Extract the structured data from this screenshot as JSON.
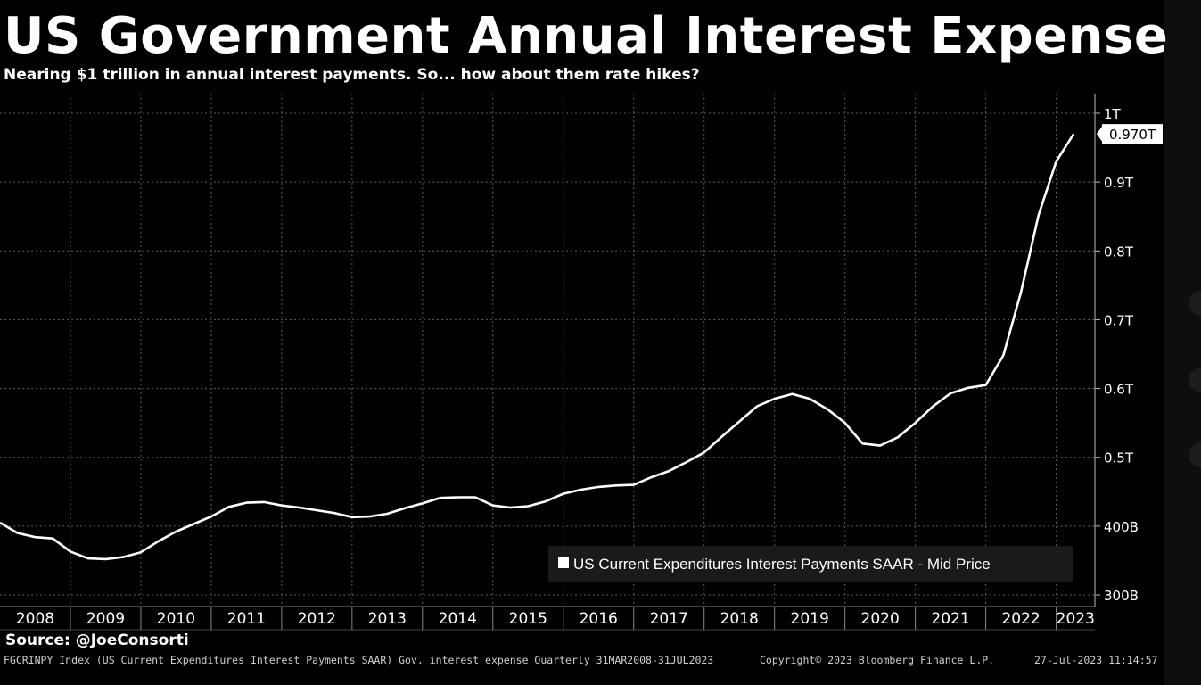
{
  "header": {
    "title": "US Government Annual Interest Expense",
    "subtitle": "Nearing $1 trillion in annual interest payments. So... how about them rate hikes?"
  },
  "footer": {
    "source": "Source: @JoeConsorti",
    "index_line": "FGCRINPY Index (US Current Expenditures Interest Payments SAAR) Gov. interest expense  Quarterly 31MAR2008-31JUL2023",
    "copyright": "Copyright© 2023 Bloomberg Finance L.P.",
    "timestamp": "27-Jul-2023 11:14:57"
  },
  "colors": {
    "background": "#000000",
    "line": "#ffffff",
    "grid": "#5a5a5a",
    "legend_bg": "#1a1a1a"
  },
  "chart_data": {
    "type": "line",
    "title": "US Government Annual Interest Expense",
    "subtitle": "Nearing $1 trillion in annual interest payments. So... how about them rate hikes?",
    "xlabel": "",
    "ylabel": "",
    "x_tick_labels": [
      "2008",
      "2009",
      "2010",
      "2011",
      "2012",
      "2013",
      "2014",
      "2015",
      "2016",
      "2017",
      "2018",
      "2019",
      "2020",
      "2021",
      "2022",
      "2023"
    ],
    "y_tick_labels": [
      {
        "value": 300,
        "label": "300B"
      },
      {
        "value": 400,
        "label": "400B"
      },
      {
        "value": 500,
        "label": "0.5T"
      },
      {
        "value": 600,
        "label": "0.6T"
      },
      {
        "value": 700,
        "label": "0.7T"
      },
      {
        "value": 800,
        "label": "0.8T"
      },
      {
        "value": 900,
        "label": "0.9T"
      },
      {
        "value": 1000,
        "label": "1T"
      }
    ],
    "y_unit": "billions USD",
    "ylim": [
      300,
      1000
    ],
    "grid": true,
    "y_axis_position": "right",
    "legend_position": "bottom-right",
    "last_value_label": "0.970T",
    "series": [
      {
        "name": "US Current Expenditures Interest Payments SAAR - Mid Price",
        "points": [
          {
            "x": "2008-01",
            "y": 405
          },
          {
            "x": "2008-04",
            "y": 390
          },
          {
            "x": "2008-07",
            "y": 384
          },
          {
            "x": "2008-10",
            "y": 382
          },
          {
            "x": "2009-01",
            "y": 363
          },
          {
            "x": "2009-04",
            "y": 353
          },
          {
            "x": "2009-07",
            "y": 352
          },
          {
            "x": "2009-10",
            "y": 355
          },
          {
            "x": "2010-01",
            "y": 362
          },
          {
            "x": "2010-04",
            "y": 378
          },
          {
            "x": "2010-07",
            "y": 392
          },
          {
            "x": "2010-10",
            "y": 403
          },
          {
            "x": "2011-01",
            "y": 414
          },
          {
            "x": "2011-04",
            "y": 428
          },
          {
            "x": "2011-07",
            "y": 434
          },
          {
            "x": "2011-10",
            "y": 435
          },
          {
            "x": "2012-01",
            "y": 430
          },
          {
            "x": "2012-04",
            "y": 427
          },
          {
            "x": "2012-07",
            "y": 423
          },
          {
            "x": "2012-10",
            "y": 419
          },
          {
            "x": "2013-01",
            "y": 413
          },
          {
            "x": "2013-04",
            "y": 414
          },
          {
            "x": "2013-07",
            "y": 418
          },
          {
            "x": "2013-10",
            "y": 426
          },
          {
            "x": "2014-01",
            "y": 433
          },
          {
            "x": "2014-04",
            "y": 441
          },
          {
            "x": "2014-07",
            "y": 442
          },
          {
            "x": "2014-10",
            "y": 442
          },
          {
            "x": "2015-01",
            "y": 430
          },
          {
            "x": "2015-04",
            "y": 427
          },
          {
            "x": "2015-07",
            "y": 429
          },
          {
            "x": "2015-10",
            "y": 436
          },
          {
            "x": "2016-01",
            "y": 447
          },
          {
            "x": "2016-04",
            "y": 453
          },
          {
            "x": "2016-07",
            "y": 457
          },
          {
            "x": "2016-10",
            "y": 459
          },
          {
            "x": "2017-01",
            "y": 460
          },
          {
            "x": "2017-04",
            "y": 471
          },
          {
            "x": "2017-07",
            "y": 480
          },
          {
            "x": "2017-10",
            "y": 493
          },
          {
            "x": "2018-01",
            "y": 507
          },
          {
            "x": "2018-04",
            "y": 530
          },
          {
            "x": "2018-07",
            "y": 552
          },
          {
            "x": "2018-10",
            "y": 574
          },
          {
            "x": "2019-01",
            "y": 585
          },
          {
            "x": "2019-04",
            "y": 592
          },
          {
            "x": "2019-07",
            "y": 585
          },
          {
            "x": "2019-10",
            "y": 570
          },
          {
            "x": "2020-01",
            "y": 550
          },
          {
            "x": "2020-04",
            "y": 520
          },
          {
            "x": "2020-07",
            "y": 517
          },
          {
            "x": "2020-10",
            "y": 529
          },
          {
            "x": "2021-01",
            "y": 550
          },
          {
            "x": "2021-04",
            "y": 574
          },
          {
            "x": "2021-07",
            "y": 593
          },
          {
            "x": "2021-10",
            "y": 601
          },
          {
            "x": "2022-01",
            "y": 605
          },
          {
            "x": "2022-04",
            "y": 648
          },
          {
            "x": "2022-07",
            "y": 740
          },
          {
            "x": "2022-10",
            "y": 852
          },
          {
            "x": "2023-01",
            "y": 930
          },
          {
            "x": "2023-04",
            "y": 970
          }
        ]
      }
    ]
  }
}
